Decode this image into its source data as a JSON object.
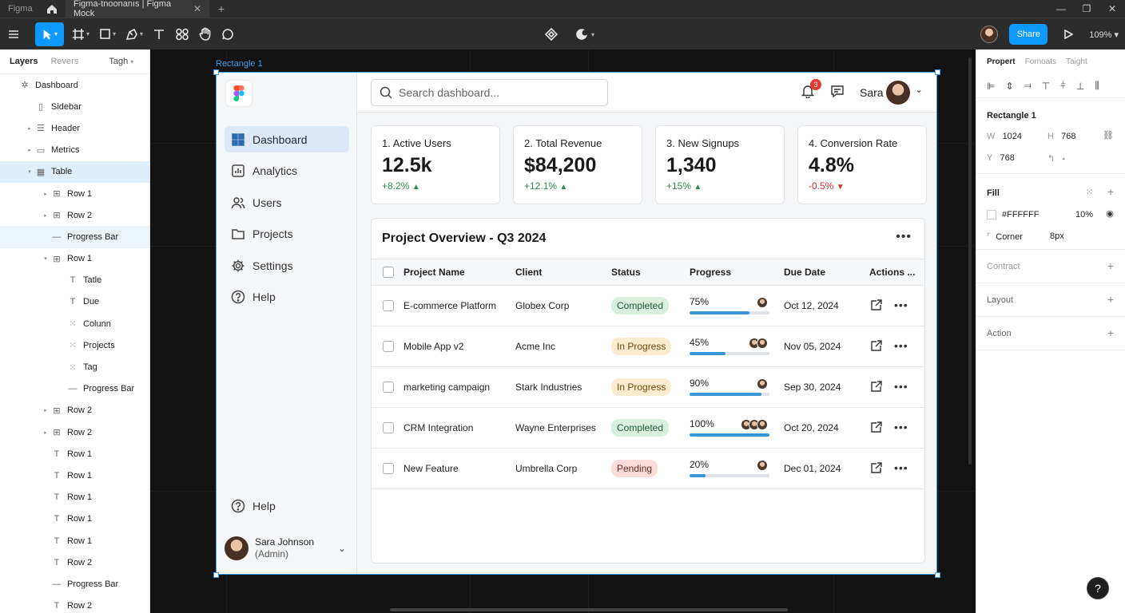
{
  "titlebar": {
    "app_name": "Figma",
    "tab_title": "Figma-tnoonanıs | Figma Mock",
    "close_glyph": "✕",
    "new_tab_glyph": "+",
    "win_min": "—",
    "win_max": "❐",
    "win_close": "✕"
  },
  "toolbar": {
    "share_label": "Share",
    "zoom": "109%"
  },
  "layers": {
    "tabs": [
      "Layers",
      "Revers",
      "Tagh"
    ],
    "items": [
      {
        "label": "Dashboard",
        "indent": 0,
        "arrow": "",
        "icon": "✲"
      },
      {
        "label": "Sidebar",
        "indent": 1,
        "arrow": "",
        "icon": "▯"
      },
      {
        "label": "Header",
        "indent": 1,
        "arrow": "▸",
        "icon": "☰"
      },
      {
        "label": "Metrics",
        "indent": 1,
        "arrow": "▸",
        "icon": "▭"
      },
      {
        "label": "Table",
        "indent": 1,
        "arrow": "▾",
        "icon": "▦"
      },
      {
        "label": "Row 1",
        "indent": 2,
        "arrow": "▸",
        "icon": "⊞"
      },
      {
        "label": "Row 2",
        "indent": 2,
        "arrow": "▸",
        "icon": "⊞"
      },
      {
        "label": "Progress Bar",
        "indent": 2,
        "arrow": "",
        "icon": "—"
      },
      {
        "label": "Row 1",
        "indent": 2,
        "arrow": "▾",
        "icon": "⊞"
      },
      {
        "label": "Tatle",
        "indent": 3,
        "arrow": "",
        "icon": "T"
      },
      {
        "label": "Due",
        "indent": 3,
        "arrow": "",
        "icon": "T"
      },
      {
        "label": "Colunn",
        "indent": 3,
        "arrow": "",
        "icon": "⁙"
      },
      {
        "label": "Projects",
        "indent": 3,
        "arrow": "",
        "icon": "⁙"
      },
      {
        "label": "Tag",
        "indent": 3,
        "arrow": "",
        "icon": "⁙"
      },
      {
        "label": "Progress Bar",
        "indent": 3,
        "arrow": "",
        "icon": "—"
      },
      {
        "label": "Row 2",
        "indent": 2,
        "arrow": "▸",
        "icon": "⊞"
      },
      {
        "label": "Row 2",
        "indent": 2,
        "arrow": "▸",
        "icon": "⊞"
      },
      {
        "label": "Row 1",
        "indent": 2,
        "arrow": "",
        "icon": "T"
      },
      {
        "label": "Row 1",
        "indent": 2,
        "arrow": "",
        "icon": "T"
      },
      {
        "label": "Row 1",
        "indent": 2,
        "arrow": "",
        "icon": "T"
      },
      {
        "label": "Row 1",
        "indent": 2,
        "arrow": "",
        "icon": "T"
      },
      {
        "label": "Row 1",
        "indent": 2,
        "arrow": "",
        "icon": "T"
      },
      {
        "label": "Row 2",
        "indent": 2,
        "arrow": "",
        "icon": "T"
      },
      {
        "label": "Progress Bar",
        "indent": 2,
        "arrow": "",
        "icon": "—"
      },
      {
        "label": "Row 2",
        "indent": 2,
        "arrow": "",
        "icon": "T"
      }
    ]
  },
  "canvas": {
    "frame_label": "Rectangle 1"
  },
  "sidebar": {
    "nav": [
      {
        "label": "Dashboard",
        "icon": "grid-icon"
      },
      {
        "label": "Analytics",
        "icon": "chart-icon"
      },
      {
        "label": "Users",
        "icon": "users-icon"
      },
      {
        "label": "Projects",
        "icon": "folder-icon"
      },
      {
        "label": "Settings",
        "icon": "gear-icon"
      },
      {
        "label": "Help",
        "icon": "help-icon"
      }
    ],
    "bottom_help": "Help",
    "user_name": "Sara Johnson",
    "user_role": "(Admin)"
  },
  "header": {
    "search_placeholder": "Search dashboard...",
    "notification_count": "3",
    "user_name": "Sara"
  },
  "metrics": [
    {
      "label": "1. Active Users",
      "value": "12.5k",
      "delta": "+8.2%",
      "trend": "up"
    },
    {
      "label": "2. Total Revenue",
      "value": "$84,200",
      "delta": "+12.1%",
      "trend": "up"
    },
    {
      "label": "3. New Signups",
      "value": "1,340",
      "delta": "+15%",
      "trend": "up"
    },
    {
      "label": "4. Conversion Rate",
      "value": "4.8%",
      "delta": "-0.5%",
      "trend": "down"
    }
  ],
  "table": {
    "title": "Project Overview - Q3 2024",
    "columns": [
      "Project Name",
      "Client",
      "Status",
      "Progress",
      "Due Date",
      "Actions ..."
    ],
    "rows": [
      {
        "name": "E-commerce Platform",
        "client": "Globex Corp",
        "status": "Completed",
        "status_kind": "completed",
        "progress": 75,
        "progress_label": "75%",
        "avatars": 1,
        "due": "Oct 12, 2024"
      },
      {
        "name": "Mobile App v2",
        "client": "Acme Inc",
        "status": "In Progress",
        "status_kind": "inprogress",
        "progress": 45,
        "progress_label": "45%",
        "avatars": 2,
        "due": "Nov 05, 2024"
      },
      {
        "name": "marketing campaign",
        "client": "Stark Industries",
        "status": "In Progress",
        "status_kind": "inprogress",
        "progress": 90,
        "progress_label": "90%",
        "avatars": 1,
        "due": "Sep 30, 2024"
      },
      {
        "name": "CRM Integration",
        "client": "Wayne Enterprises",
        "status": "Completed",
        "status_kind": "completed",
        "progress": 100,
        "progress_label": "100%",
        "avatars": 3,
        "due": "Oct 20, 2024"
      },
      {
        "name": "New Feature",
        "client": "Umbrella Corp",
        "status": "Pending",
        "status_kind": "pending",
        "progress": 20,
        "progress_label": "20%",
        "avatars": 1,
        "due": "Dec 01, 2024"
      }
    ]
  },
  "properties": {
    "tabs": [
      "Propert",
      "Fornoats",
      "Taight"
    ],
    "element_name": "Rectangle 1",
    "w_label": "W",
    "w_value": "1024",
    "h_label": "H",
    "h_value": "768",
    "y_label": "Y",
    "y_value": "768",
    "rot_value": "-",
    "fill_title": "Fill",
    "fill_hex": "#FFFFFF",
    "fill_opacity": "10%",
    "corner_label": "Corner",
    "corner_value": "8px",
    "sections": [
      "Contract",
      "Layout",
      "Action"
    ]
  },
  "help_glyph": "?"
}
